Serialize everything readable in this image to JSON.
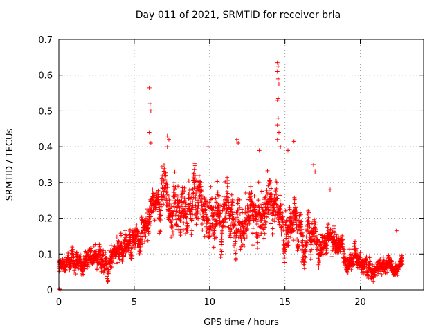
{
  "chart_data": {
    "type": "scatter",
    "title": "Day 011 of 2021, SRMTID for receiver brla",
    "xlabel": "GPS time / hours",
    "ylabel": "SRMTID / TECUs",
    "xlim": [
      0,
      24.2
    ],
    "ylim": [
      0,
      0.7
    ],
    "x_ticks": [
      0,
      5,
      10,
      15,
      20
    ],
    "x_tick_labels": [
      "0",
      "5",
      "10",
      "15",
      "20"
    ],
    "y_ticks": [
      0,
      0.1,
      0.2,
      0.3,
      0.4,
      0.5,
      0.6,
      0.7
    ],
    "y_tick_labels": [
      "0",
      "0.1",
      "0.2",
      "0.3",
      "0.4",
      "0.5",
      "0.6",
      "0.7"
    ],
    "grid": true,
    "marker": "+",
    "marker_color": "#ff0000",
    "time_range_hours": [
      0,
      22.8
    ],
    "trend": {
      "x": [
        0,
        0.5,
        1,
        1.5,
        2,
        3,
        4,
        5,
        5.5,
        6,
        6.5,
        7,
        7.5,
        8,
        9,
        10,
        11,
        12,
        13,
        14,
        14.5,
        15,
        16,
        17,
        17.5,
        18,
        18.5,
        19,
        20,
        21,
        22,
        22.8
      ],
      "y": [
        0.08,
        0.06,
        0.09,
        0.08,
        0.1,
        0.09,
        0.09,
        0.14,
        0.16,
        0.2,
        0.24,
        0.27,
        0.25,
        0.2,
        0.2,
        0.19,
        0.22,
        0.21,
        0.22,
        0.23,
        0.22,
        0.19,
        0.16,
        0.13,
        0.14,
        0.16,
        0.11,
        0.08,
        0.07,
        0.05,
        0.06,
        0.08
      ]
    },
    "spread": {
      "x": [
        0,
        5,
        7,
        10,
        14,
        16,
        18,
        20,
        22.8
      ],
      "y": [
        0.025,
        0.04,
        0.06,
        0.07,
        0.07,
        0.05,
        0.04,
        0.025,
        0.02
      ]
    },
    "outliers": [
      {
        "x": 6.0,
        "y": 0.565
      },
      {
        "x": 6.05,
        "y": 0.52
      },
      {
        "x": 6.1,
        "y": 0.5
      },
      {
        "x": 6.0,
        "y": 0.44
      },
      {
        "x": 6.1,
        "y": 0.41
      },
      {
        "x": 7.2,
        "y": 0.43
      },
      {
        "x": 7.3,
        "y": 0.42
      },
      {
        "x": 7.2,
        "y": 0.4
      },
      {
        "x": 9.9,
        "y": 0.4
      },
      {
        "x": 11.8,
        "y": 0.42
      },
      {
        "x": 11.9,
        "y": 0.41
      },
      {
        "x": 13.3,
        "y": 0.39
      },
      {
        "x": 14.5,
        "y": 0.635
      },
      {
        "x": 14.55,
        "y": 0.625
      },
      {
        "x": 14.5,
        "y": 0.61
      },
      {
        "x": 14.55,
        "y": 0.59
      },
      {
        "x": 14.6,
        "y": 0.575
      },
      {
        "x": 14.55,
        "y": 0.535
      },
      {
        "x": 14.5,
        "y": 0.53
      },
      {
        "x": 14.55,
        "y": 0.48
      },
      {
        "x": 14.5,
        "y": 0.46
      },
      {
        "x": 14.6,
        "y": 0.44
      },
      {
        "x": 14.5,
        "y": 0.42
      },
      {
        "x": 14.7,
        "y": 0.4
      },
      {
        "x": 15.2,
        "y": 0.39
      },
      {
        "x": 15.6,
        "y": 0.415
      },
      {
        "x": 16.9,
        "y": 0.35
      },
      {
        "x": 17.0,
        "y": 0.33
      },
      {
        "x": 18.0,
        "y": 0.28
      },
      {
        "x": 22.4,
        "y": 0.165
      }
    ]
  }
}
